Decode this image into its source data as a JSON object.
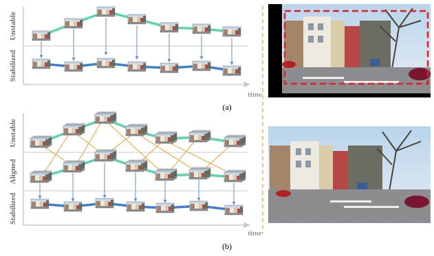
{
  "panel_a": {
    "caption": "(a)",
    "row_labels": [
      "Unstable",
      "Stabilized"
    ],
    "time_label": "time"
  },
  "panel_b": {
    "caption": "(b)",
    "row_labels": [
      "Unstable",
      "Aligned",
      "Stabilized"
    ],
    "time_label": "time"
  },
  "colors": {
    "unstable_path": "#5fd3b0",
    "stabilized_path": "#3f7fd0",
    "vertical_arrow": "#5b8fd6",
    "alignment_arrow": "#f0a030",
    "axis": "#c8c8c8",
    "separator": "#f0a030",
    "crop_box": "#e02020"
  }
}
